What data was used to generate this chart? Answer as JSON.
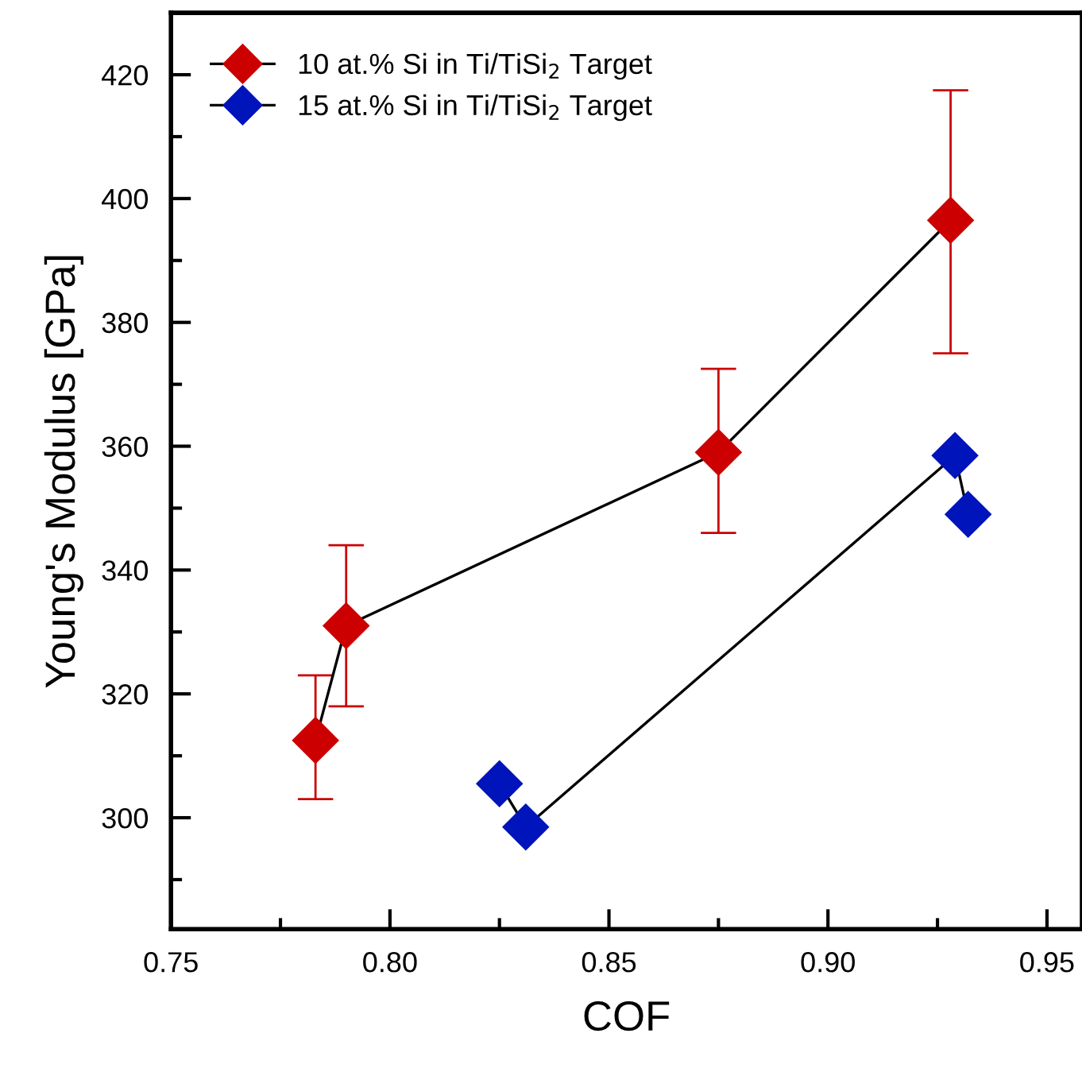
{
  "chart_data": {
    "type": "line",
    "xlabel": "COF",
    "ylabel": "Young's Modulus [GPa]",
    "series": [
      {
        "name": "10 at.% Si in Ti/TiSi$_{2}$ Target",
        "color": "#000000",
        "colors": [
          "#cc0000",
          "#cc0000",
          "#cc0000",
          "#cc0000"
        ],
        "x": [
          0.783,
          0.79,
          0.875,
          0.928
        ],
        "values": [
          312.5,
          331,
          359,
          396.5
        ],
        "errors": [
          [
            303,
            323
          ],
          [
            318,
            344
          ],
          [
            346,
            372.5
          ],
          [
            375,
            417.5
          ]
        ]
      },
      {
        "name": "15 at.% Si in Ti/TiSi$_{2}$ Target",
        "color": "#000000",
        "colors": [
          "#0014bb",
          "#0014bb",
          "#0014bb",
          "#0014bb"
        ],
        "x": [
          0.825,
          0.831,
          0.929,
          0.932
        ],
        "values": [
          305.5,
          298.5,
          358.5,
          349
        ]
      }
    ],
    "line_style": "solid",
    "marker": "diamond",
    "xlim": [
      0.75,
      0.958
    ],
    "xticks": [
      {
        "value": 0.75,
        "label": "0.75"
      },
      {
        "value": 0.8,
        "label": "0.80"
      },
      {
        "value": 0.85,
        "label": "0.85"
      },
      {
        "value": 0.9,
        "label": "0.90"
      },
      {
        "value": 0.95,
        "label": "0.95"
      }
    ],
    "ylim": [
      282,
      430
    ],
    "yticks": [
      300,
      320,
      340,
      360,
      380,
      400,
      420
    ],
    "legend": "top left",
    "grid": false
  }
}
